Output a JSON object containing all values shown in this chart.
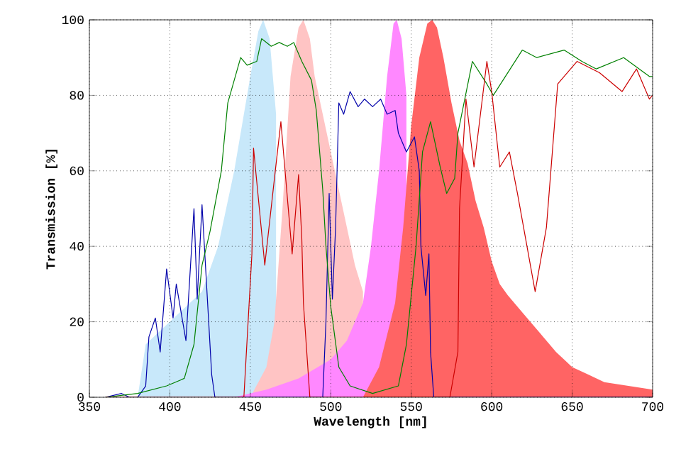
{
  "chart_data": {
    "type": "line",
    "xlabel": "Wavelength [nm]",
    "ylabel": "Transmission [%]",
    "xlim": [
      350,
      700
    ],
    "ylim": [
      0,
      100
    ],
    "xticks": [
      350,
      400,
      450,
      500,
      550,
      600,
      650,
      700
    ],
    "yticks": [
      0,
      20,
      40,
      60,
      80,
      100
    ],
    "grid": true,
    "series": [
      {
        "type": "area",
        "color": "#c8e8fa",
        "x": [
          380,
          385,
          400,
          420,
          430,
          440,
          450,
          455,
          458,
          462,
          466
        ],
        "values": [
          0,
          14,
          20,
          28,
          40,
          60,
          85,
          97,
          100,
          95,
          75
        ]
      },
      {
        "type": "area",
        "color": "#ffc4c4",
        "x": [
          450,
          460,
          465,
          470,
          475,
          480,
          483,
          487,
          490,
          495,
          500,
          505,
          510,
          515,
          520
        ],
        "values": [
          0,
          8,
          20,
          50,
          85,
          98,
          100,
          95,
          85,
          75,
          65,
          55,
          45,
          35,
          28
        ]
      },
      {
        "type": "area",
        "color": "#ff88ff",
        "x": [
          440,
          460,
          480,
          500,
          510,
          520,
          525,
          530,
          535,
          539,
          541,
          544,
          547
        ],
        "values": [
          0,
          2,
          5,
          10,
          15,
          25,
          40,
          60,
          85,
          99,
          100,
          95,
          80
        ]
      },
      {
        "type": "area",
        "color": "#ff6464",
        "x": [
          520,
          530,
          540,
          545,
          550,
          555,
          560,
          563,
          566,
          570,
          575,
          580,
          585,
          590,
          595,
          600,
          605,
          610,
          620,
          630,
          640,
          650,
          660,
          670,
          685,
          700
        ],
        "values": [
          0,
          8,
          25,
          45,
          72,
          90,
          99,
          100,
          98,
          90,
          78,
          68,
          62,
          52,
          45,
          36,
          30,
          27,
          22,
          17,
          12,
          8,
          6,
          4,
          3,
          2
        ]
      },
      {
        "color": "#0000aa",
        "x": [
          360,
          370,
          375,
          380,
          385,
          387,
          391,
          394,
          398,
          402,
          404,
          410,
          415,
          417,
          420,
          424,
          426,
          428,
          492,
          495,
          497,
          499,
          501,
          503,
          505,
          508,
          512,
          517,
          521,
          526,
          531,
          535,
          540,
          542,
          547,
          552,
          555,
          556,
          559,
          561,
          562,
          564,
          700
        ],
        "values": [
          0,
          1,
          0,
          0,
          3,
          16,
          21,
          12,
          34,
          21,
          30,
          15,
          50,
          26,
          51,
          21,
          6,
          0,
          0,
          0,
          20,
          54,
          26,
          45,
          78,
          75,
          81,
          77,
          79,
          77,
          79,
          75,
          76,
          70,
          65,
          69,
          60,
          40,
          27,
          38,
          12,
          0,
          0
        ]
      },
      {
        "color": "#008000",
        "x": [
          360,
          380,
          398,
          409,
          415,
          420,
          425,
          432,
          436,
          444,
          448,
          454,
          457,
          463,
          468,
          473,
          477,
          482,
          488,
          491,
          495,
          497,
          500,
          505,
          512,
          526,
          542,
          547,
          553,
          557,
          562,
          568,
          572,
          577,
          579,
          588,
          597,
          601,
          619,
          628,
          645,
          656,
          665,
          682,
          698,
          700
        ],
        "values": [
          0,
          1,
          3,
          5,
          14,
          35,
          44,
          60,
          78,
          90,
          88,
          89,
          95,
          93,
          94,
          93,
          94,
          89,
          84,
          76,
          55,
          40,
          24,
          8,
          3,
          1,
          3,
          14,
          40,
          65,
          73,
          61,
          54,
          58,
          70,
          89,
          83,
          80,
          92,
          90,
          92,
          89,
          87,
          90,
          85,
          85
        ]
      },
      {
        "color": "#cc0000",
        "x": [
          360,
          446,
          451,
          452,
          459,
          465,
          469,
          474,
          476,
          480,
          482,
          483,
          487,
          574,
          579,
          580,
          584,
          589,
          597,
          600,
          605,
          611,
          616,
          627,
          634,
          641,
          653,
          667,
          681,
          690,
          698,
          700
        ],
        "values": [
          0,
          0,
          38,
          66,
          35,
          58,
          73,
          48,
          38,
          59,
          42,
          25,
          0,
          0,
          12,
          50,
          79,
          61,
          89,
          81,
          61,
          65,
          54,
          28,
          45,
          83,
          89,
          86,
          81,
          87,
          79,
          80
        ]
      }
    ]
  }
}
